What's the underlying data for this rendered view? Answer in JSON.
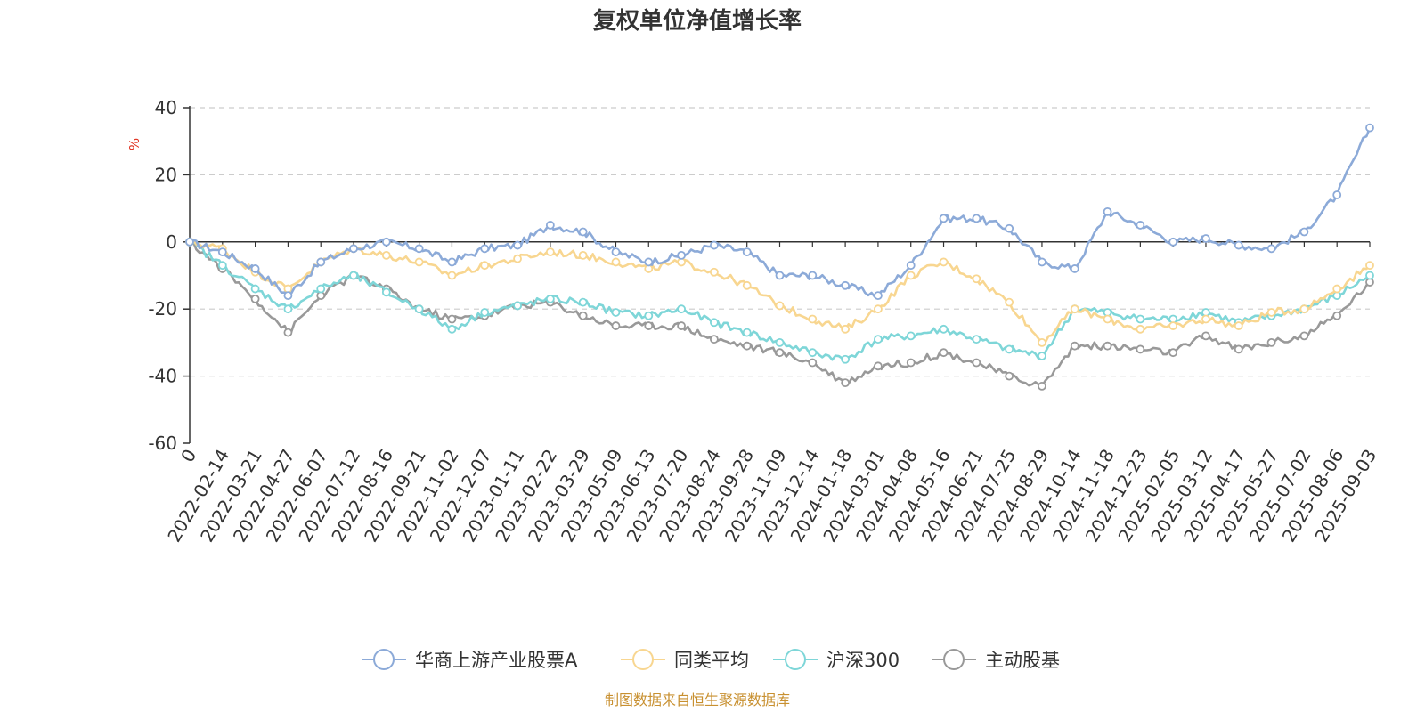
{
  "colors": {
    "accent_unit": "#e0301e",
    "source_text": "#c89030",
    "axis": "#333333",
    "grid": "#cccccc"
  },
  "chart_data": {
    "type": "line",
    "title": "复权单位净值增长率",
    "ylabel": "%",
    "ylim": [
      -60,
      40
    ],
    "yticks": [
      40,
      20,
      0,
      -20,
      -40,
      -60
    ],
    "grid": "horizontal dashed",
    "legend_position": "bottom-center",
    "x_tick_labels": [
      "0",
      "2022-02-14",
      "2022-03-21",
      "2022-04-27",
      "2022-06-07",
      "2022-07-12",
      "2022-08-16",
      "2022-09-21",
      "2022-11-02",
      "2022-12-07",
      "2023-01-11",
      "2023-02-22",
      "2023-03-29",
      "2023-05-09",
      "2023-06-13",
      "2023-07-20",
      "2023-08-24",
      "2023-09-28",
      "2023-11-09",
      "2023-12-14",
      "2024-01-18",
      "2024-03-01",
      "2024-04-08",
      "2024-05-16",
      "2024-06-21",
      "2024-07-25",
      "2024-08-29",
      "2024-10-14",
      "2024-11-18",
      "2024-12-23",
      "2025-02-05",
      "2025-03-12",
      "2025-04-17",
      "2025-05-27",
      "2025-07-02",
      "2025-08-06",
      "2025-09-03"
    ],
    "series": [
      {
        "name": "华商上游产业股票A",
        "color": "#8caad8",
        "values": [
          0,
          -3,
          -8,
          -16,
          -6,
          -2,
          0,
          -2,
          -6,
          -2,
          -1,
          5,
          3,
          -3,
          -6,
          -4,
          -1,
          -3,
          -10,
          -10,
          -13,
          -16,
          -7,
          7,
          7,
          4,
          -6,
          -8,
          9,
          5,
          0,
          1,
          -1,
          -2,
          3,
          14,
          34
        ]
      },
      {
        "name": "同类平均",
        "color": "#f8d690",
        "values": [
          0,
          -2,
          -9,
          -14,
          -6,
          -2,
          -4,
          -6,
          -10,
          -7,
          -5,
          -3,
          -4,
          -6,
          -8,
          -6,
          -9,
          -13,
          -19,
          -23,
          -26,
          -20,
          -10,
          -6,
          -11,
          -18,
          -30,
          -20,
          -23,
          -26,
          -25,
          -23,
          -25,
          -21,
          -20,
          -14,
          -7
        ]
      },
      {
        "name": "沪深300",
        "color": "#7ed6d8",
        "values": [
          0,
          -7,
          -14,
          -20,
          -14,
          -10,
          -15,
          -20,
          -26,
          -21,
          -19,
          -17,
          -18,
          -21,
          -22,
          -20,
          -24,
          -27,
          -30,
          -33,
          -35,
          -29,
          -28,
          -26,
          -29,
          -32,
          -34,
          -20,
          -21,
          -23,
          -23,
          -21,
          -24,
          -22,
          -20,
          -16,
          -10
        ]
      },
      {
        "name": "主动股基",
        "color": "#999999",
        "values": [
          0,
          -8,
          -17,
          -27,
          -16,
          -10,
          -14,
          -20,
          -23,
          -22,
          -19,
          -18,
          -22,
          -25,
          -25,
          -25,
          -29,
          -31,
          -33,
          -36,
          -42,
          -37,
          -36,
          -33,
          -36,
          -40,
          -43,
          -31,
          -31,
          -32,
          -33,
          -28,
          -32,
          -30,
          -28,
          -22,
          -12
        ]
      }
    ]
  },
  "source_note": "制图数据来自恒生聚源数据库"
}
